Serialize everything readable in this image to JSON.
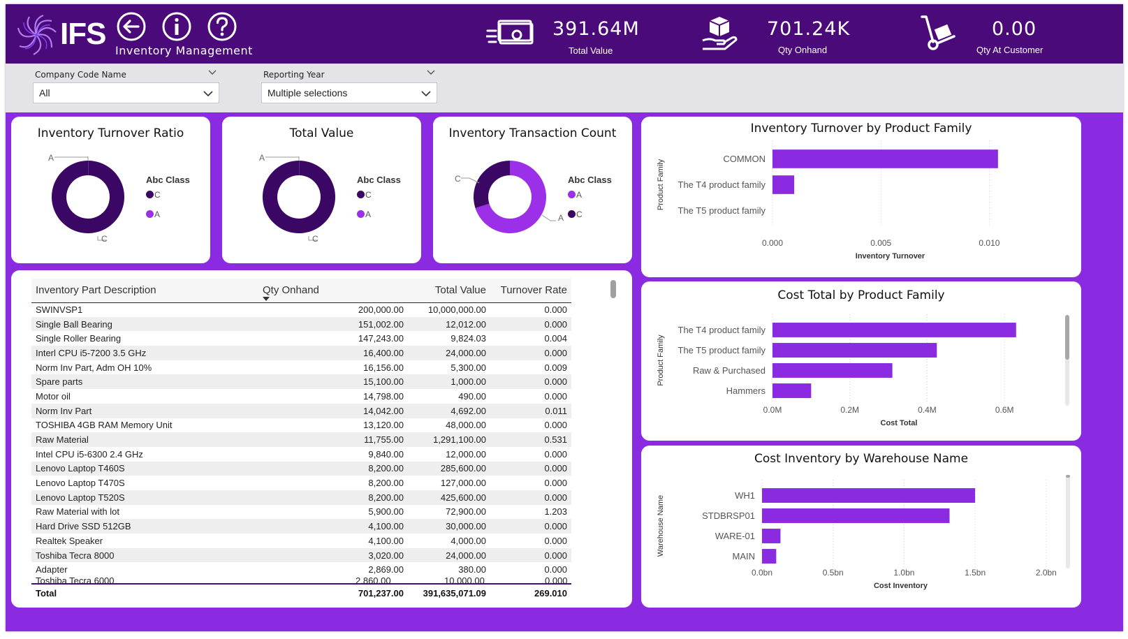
{
  "header": {
    "brand": "IFS",
    "title": "Inventory Management",
    "icons": [
      "back-arrow-icon",
      "info-icon",
      "help-icon"
    ],
    "kpis": [
      {
        "value": "391.64M",
        "label": "Total Value",
        "icon": "money-icon"
      },
      {
        "value": "701.24K",
        "label": "Qty Onhand",
        "icon": "hand-box-icon"
      },
      {
        "value": "0.00",
        "label": "Qty At Customer",
        "icon": "hand-truck-icon"
      }
    ]
  },
  "filters": {
    "company": {
      "label": "Company Code Name",
      "value": "All"
    },
    "year": {
      "label": "Reporting Year",
      "value": "Multiple selections"
    }
  },
  "donuts": [
    {
      "title": "Inventory Turnover Ratio",
      "legend_title": "Abc Class",
      "legend": [
        {
          "name": "C",
          "color": "#3b0764"
        },
        {
          "name": "A",
          "color": "#9b30e8"
        }
      ],
      "slices": [
        {
          "name": "A",
          "value": 0.1
        },
        {
          "name": "C",
          "value": 99.9
        }
      ],
      "labels": {
        "top": "A",
        "bottom": "C"
      }
    },
    {
      "title": "Total Value",
      "legend_title": "Abc Class",
      "legend": [
        {
          "name": "C",
          "color": "#3b0764"
        },
        {
          "name": "A",
          "color": "#9b30e8"
        }
      ],
      "slices": [
        {
          "name": "A",
          "value": 0.1
        },
        {
          "name": "C",
          "value": 99.9
        }
      ],
      "labels": {
        "top": "A",
        "bottom": "C"
      }
    },
    {
      "title": "Inventory Transaction Count",
      "legend_title": "Abc Class",
      "legend": [
        {
          "name": "A",
          "color": "#9b30e8"
        },
        {
          "name": "C",
          "color": "#3b0764"
        }
      ],
      "slices": [
        {
          "name": "A",
          "value": 70
        },
        {
          "name": "C",
          "value": 30
        }
      ],
      "labels": {
        "left": "C",
        "right": "A"
      }
    }
  ],
  "table": {
    "columns": [
      "Inventory Part Description",
      "Qty Onhand",
      "Total Value",
      "Turnover Rate"
    ],
    "rows": [
      [
        "SWINVSP1",
        "200,000.00",
        "10,000,000.00",
        "0.000"
      ],
      [
        "Single Ball Bearing",
        "151,002.00",
        "12,012.00",
        "0.000"
      ],
      [
        "Single Roller Bearing",
        "147,243.00",
        "9,824.03",
        "0.004"
      ],
      [
        "Interl CPU i5-7200 3.5 GHz",
        "16,400.00",
        "24,000.00",
        "0.000"
      ],
      [
        "Norm Inv Part, Adm OH 10%",
        "16,156.00",
        "5,300.00",
        "0.009"
      ],
      [
        "Spare parts",
        "15,100.00",
        "1,000.00",
        "0.000"
      ],
      [
        "Motor oil",
        "14,798.00",
        "490.00",
        "0.000"
      ],
      [
        "Norm Inv Part",
        "14,042.00",
        "4,692.00",
        "0.011"
      ],
      [
        "TOSHIBA 4GB RAM Memory Unit",
        "13,120.00",
        "48,000.00",
        "0.000"
      ],
      [
        "Raw Material",
        "11,755.00",
        "1,291,100.00",
        "0.531"
      ],
      [
        "Intel CPU i5-6300 2.4 GHz",
        "9,840.00",
        "12,000.00",
        "0.000"
      ],
      [
        "Lenovo Laptop T460S",
        "8,200.00",
        "285,600.00",
        "0.000"
      ],
      [
        "Lenovo Laptop T470S",
        "8,200.00",
        "127,000.00",
        "0.000"
      ],
      [
        "Lenovo Laptop T520S",
        "8,200.00",
        "425,600.00",
        "0.000"
      ],
      [
        "Raw Material with lot",
        "5,900.00",
        "72,900.00",
        "1.203"
      ],
      [
        "Hard Drive SSD 512GB",
        "4,100.00",
        "30,000.00",
        "0.000"
      ],
      [
        "Realtek Speaker",
        "4,100.00",
        "4,000.00",
        "0.000"
      ],
      [
        "Toshiba Tecra 8000",
        "3,020.00",
        "24,000.00",
        "0.000"
      ],
      [
        "Adapter",
        "2,869.00",
        "380.00",
        "0.000"
      ]
    ],
    "total": [
      "Total",
      "701,237.00",
      "391,635,071.09",
      "269.010"
    ]
  },
  "chart_data": [
    {
      "type": "bar",
      "title": "Inventory Turnover by Product Family",
      "categories": [
        "COMMON",
        "The T4 product family",
        "The T5 product family"
      ],
      "values": [
        0.0104,
        0.001,
        0
      ],
      "xlabel": "Inventory Turnover",
      "ylabel": "Product Family",
      "xlim": [
        0,
        0.0115
      ],
      "ticks": [
        0,
        0.005,
        0.01
      ],
      "tick_labels": [
        "0.000",
        "0.005",
        "0.010"
      ],
      "color": "#8a2be2"
    },
    {
      "type": "bar",
      "title": "Cost Total by Product Family",
      "categories": [
        "The T4 product family",
        "The T5 product family",
        "Raw & Purchased",
        "Hammers"
      ],
      "values": [
        630000,
        425000,
        310000,
        100000
      ],
      "xlabel": "Cost Total",
      "ylabel": "Product Family",
      "xlim": [
        0,
        690000
      ],
      "ticks": [
        0,
        200000,
        400000,
        600000
      ],
      "tick_labels": [
        "0.0M",
        "0.2M",
        "0.4M",
        "0.6M"
      ],
      "color": "#8a2be2"
    },
    {
      "type": "bar",
      "title": "Cost Inventory by Warehouse Name",
      "categories": [
        "WH1",
        "STDBRSP01",
        "WARE-01",
        "MAIN"
      ],
      "values": [
        1500000000,
        1320000000,
        130000000,
        100000000
      ],
      "xlabel": "Cost Inventory",
      "ylabel": "Warehouse Name",
      "xlim": [
        0,
        2050000000
      ],
      "ticks": [
        0,
        500000000,
        1000000000,
        1500000000,
        2000000000
      ],
      "tick_labels": [
        "0.0bn",
        "0.5bn",
        "1.0bn",
        "1.5bn",
        "2.0bn"
      ],
      "color": "#8a2be2"
    }
  ]
}
